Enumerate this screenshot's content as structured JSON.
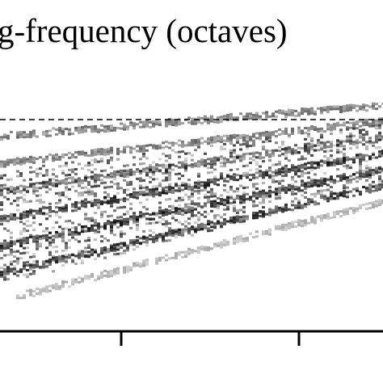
{
  "chart_data": {
    "type": "spectrogram",
    "title": "g-frequency (octaves)"
  }
}
